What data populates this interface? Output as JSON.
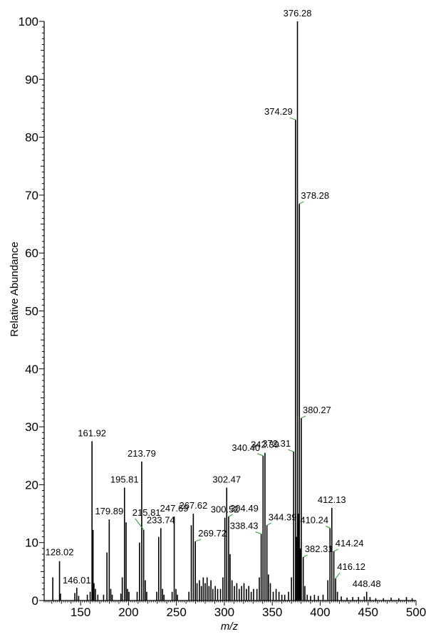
{
  "chart_data": {
    "type": "bar",
    "title": "",
    "xlabel": "m/z",
    "ylabel": "Relative Abundance",
    "xlim": [
      112,
      500
    ],
    "ylim": [
      0,
      100
    ],
    "x_ticks": [
      150,
      200,
      250,
      300,
      350,
      400,
      450,
      500
    ],
    "y_ticks": [
      0,
      10,
      20,
      30,
      40,
      50,
      60,
      70,
      80,
      90,
      100
    ],
    "peaks": [
      {
        "mz": 121.0,
        "intensity": 4.0
      },
      {
        "mz": 128.02,
        "intensity": 6.8,
        "label": "128.02"
      },
      {
        "mz": 129.0,
        "intensity": 1.2
      },
      {
        "mz": 144.0,
        "intensity": 1.3
      },
      {
        "mz": 146.01,
        "intensity": 2.2,
        "label": "146.01"
      },
      {
        "mz": 148.0,
        "intensity": 0.8
      },
      {
        "mz": 157.0,
        "intensity": 1.0
      },
      {
        "mz": 160.0,
        "intensity": 1.5
      },
      {
        "mz": 161.92,
        "intensity": 27.5,
        "label": "161.92"
      },
      {
        "mz": 163.0,
        "intensity": 12.2
      },
      {
        "mz": 164.0,
        "intensity": 3.0
      },
      {
        "mz": 165.5,
        "intensity": 2.0
      },
      {
        "mz": 168.0,
        "intensity": 1.0
      },
      {
        "mz": 174.0,
        "intensity": 1.0
      },
      {
        "mz": 177.5,
        "intensity": 8.3
      },
      {
        "mz": 179.89,
        "intensity": 14.0,
        "label": "179.89"
      },
      {
        "mz": 181.5,
        "intensity": 2.0
      },
      {
        "mz": 183.0,
        "intensity": 1.0
      },
      {
        "mz": 192.0,
        "intensity": 1.2
      },
      {
        "mz": 193.5,
        "intensity": 4.0
      },
      {
        "mz": 195.81,
        "intensity": 19.5,
        "label": "195.81"
      },
      {
        "mz": 197.5,
        "intensity": 13.5
      },
      {
        "mz": 199.0,
        "intensity": 2.0
      },
      {
        "mz": 200.5,
        "intensity": 1.5
      },
      {
        "mz": 209.0,
        "intensity": 1.5
      },
      {
        "mz": 211.5,
        "intensity": 10.0
      },
      {
        "mz": 213.79,
        "intensity": 24.0,
        "label": "213.79"
      },
      {
        "mz": 215.81,
        "intensity": 12.2,
        "label": "215.81"
      },
      {
        "mz": 217.5,
        "intensity": 3.5
      },
      {
        "mz": 219.0,
        "intensity": 1.5
      },
      {
        "mz": 229.5,
        "intensity": 1.5
      },
      {
        "mz": 231.5,
        "intensity": 11.0
      },
      {
        "mz": 233.74,
        "intensity": 12.5,
        "label": "233.74"
      },
      {
        "mz": 235.5,
        "intensity": 2.0
      },
      {
        "mz": 237.0,
        "intensity": 1.0
      },
      {
        "mz": 245.5,
        "intensity": 1.5
      },
      {
        "mz": 247.69,
        "intensity": 14.5,
        "label": "247.69"
      },
      {
        "mz": 249.5,
        "intensity": 2.0
      },
      {
        "mz": 251.0,
        "intensity": 1.0
      },
      {
        "mz": 263.0,
        "intensity": 1.5
      },
      {
        "mz": 265.5,
        "intensity": 13.0
      },
      {
        "mz": 267.62,
        "intensity": 15.0,
        "label": "267.62"
      },
      {
        "mz": 269.72,
        "intensity": 10.2,
        "label": "269.72"
      },
      {
        "mz": 271.5,
        "intensity": 3.0
      },
      {
        "mz": 274.0,
        "intensity": 3.5
      },
      {
        "mz": 276.0,
        "intensity": 2.5
      },
      {
        "mz": 278.0,
        "intensity": 4.0
      },
      {
        "mz": 280.0,
        "intensity": 3.0
      },
      {
        "mz": 282.0,
        "intensity": 4.0
      },
      {
        "mz": 284.0,
        "intensity": 2.5
      },
      {
        "mz": 286.0,
        "intensity": 3.5
      },
      {
        "mz": 288.0,
        "intensity": 2.0
      },
      {
        "mz": 290.5,
        "intensity": 2.5
      },
      {
        "mz": 293.0,
        "intensity": 2.0
      },
      {
        "mz": 296.0,
        "intensity": 2.0
      },
      {
        "mz": 298.5,
        "intensity": 4.0
      },
      {
        "mz": 300.52,
        "intensity": 14.3,
        "label": "300.52"
      },
      {
        "mz": 302.47,
        "intensity": 19.5,
        "label": "302.47"
      },
      {
        "mz": 304.49,
        "intensity": 14.5,
        "label": "304.49"
      },
      {
        "mz": 306.0,
        "intensity": 8.0
      },
      {
        "mz": 308.0,
        "intensity": 3.5
      },
      {
        "mz": 310.5,
        "intensity": 2.5
      },
      {
        "mz": 313.0,
        "intensity": 3.0
      },
      {
        "mz": 315.5,
        "intensity": 2.0
      },
      {
        "mz": 318.0,
        "intensity": 2.5
      },
      {
        "mz": 320.5,
        "intensity": 3.0
      },
      {
        "mz": 323.0,
        "intensity": 2.0
      },
      {
        "mz": 325.5,
        "intensity": 2.5
      },
      {
        "mz": 328.0,
        "intensity": 1.5
      },
      {
        "mz": 330.5,
        "intensity": 2.0
      },
      {
        "mz": 334.0,
        "intensity": 2.0
      },
      {
        "mz": 336.5,
        "intensity": 4.0
      },
      {
        "mz": 338.43,
        "intensity": 11.5,
        "label": "338.43"
      },
      {
        "mz": 340.4,
        "intensity": 25.0,
        "label": "340.40"
      },
      {
        "mz": 342.39,
        "intensity": 25.5,
        "label": "342.39"
      },
      {
        "mz": 344.39,
        "intensity": 13.0,
        "label": "344.39"
      },
      {
        "mz": 346.0,
        "intensity": 4.5
      },
      {
        "mz": 348.0,
        "intensity": 3.0
      },
      {
        "mz": 351.0,
        "intensity": 1.5
      },
      {
        "mz": 354.0,
        "intensity": 2.0
      },
      {
        "mz": 357.0,
        "intensity": 1.5
      },
      {
        "mz": 360.0,
        "intensity": 1.0
      },
      {
        "mz": 363.0,
        "intensity": 1.0
      },
      {
        "mz": 367.0,
        "intensity": 1.5
      },
      {
        "mz": 370.0,
        "intensity": 4.0
      },
      {
        "mz": 372.31,
        "intensity": 25.7,
        "label": "372.31"
      },
      {
        "mz": 374.29,
        "intensity": 83.0,
        "label": "374.29"
      },
      {
        "mz": 375.2,
        "intensity": 11.0
      },
      {
        "mz": 376.28,
        "intensity": 100.0,
        "label": "376.28"
      },
      {
        "mz": 377.3,
        "intensity": 15.0
      },
      {
        "mz": 378.28,
        "intensity": 68.5,
        "label": "378.28"
      },
      {
        "mz": 379.3,
        "intensity": 9.0
      },
      {
        "mz": 380.27,
        "intensity": 31.5,
        "label": "380.27"
      },
      {
        "mz": 382.31,
        "intensity": 7.5,
        "label": "382.31"
      },
      {
        "mz": 384.0,
        "intensity": 2.5
      },
      {
        "mz": 386.5,
        "intensity": 1.0
      },
      {
        "mz": 390.0,
        "intensity": 0.8
      },
      {
        "mz": 394.0,
        "intensity": 1.0
      },
      {
        "mz": 398.0,
        "intensity": 0.8
      },
      {
        "mz": 403.0,
        "intensity": 1.0
      },
      {
        "mz": 408.0,
        "intensity": 3.5
      },
      {
        "mz": 410.24,
        "intensity": 12.5,
        "label": "410.24"
      },
      {
        "mz": 412.13,
        "intensity": 16.0,
        "label": "412.13"
      },
      {
        "mz": 414.24,
        "intensity": 8.5,
        "label": "414.24"
      },
      {
        "mz": 416.12,
        "intensity": 3.8,
        "label": "416.12"
      },
      {
        "mz": 418.0,
        "intensity": 1.5
      },
      {
        "mz": 422.0,
        "intensity": 0.7
      },
      {
        "mz": 428.0,
        "intensity": 0.5
      },
      {
        "mz": 434.0,
        "intensity": 0.6
      },
      {
        "mz": 440.0,
        "intensity": 0.6
      },
      {
        "mz": 446.0,
        "intensity": 0.7
      },
      {
        "mz": 448.48,
        "intensity": 1.5,
        "label": "448.48"
      },
      {
        "mz": 452.0,
        "intensity": 0.6
      },
      {
        "mz": 458.0,
        "intensity": 0.4
      },
      {
        "mz": 466.0,
        "intensity": 0.4
      },
      {
        "mz": 474.0,
        "intensity": 0.5
      },
      {
        "mz": 482.0,
        "intensity": 0.4
      },
      {
        "mz": 490.0,
        "intensity": 0.6
      },
      {
        "mz": 496.0,
        "intensity": 0.4
      }
    ]
  },
  "colors": {
    "peak": "#000000",
    "leader_line": "#22a022",
    "axis": "#000000"
  }
}
